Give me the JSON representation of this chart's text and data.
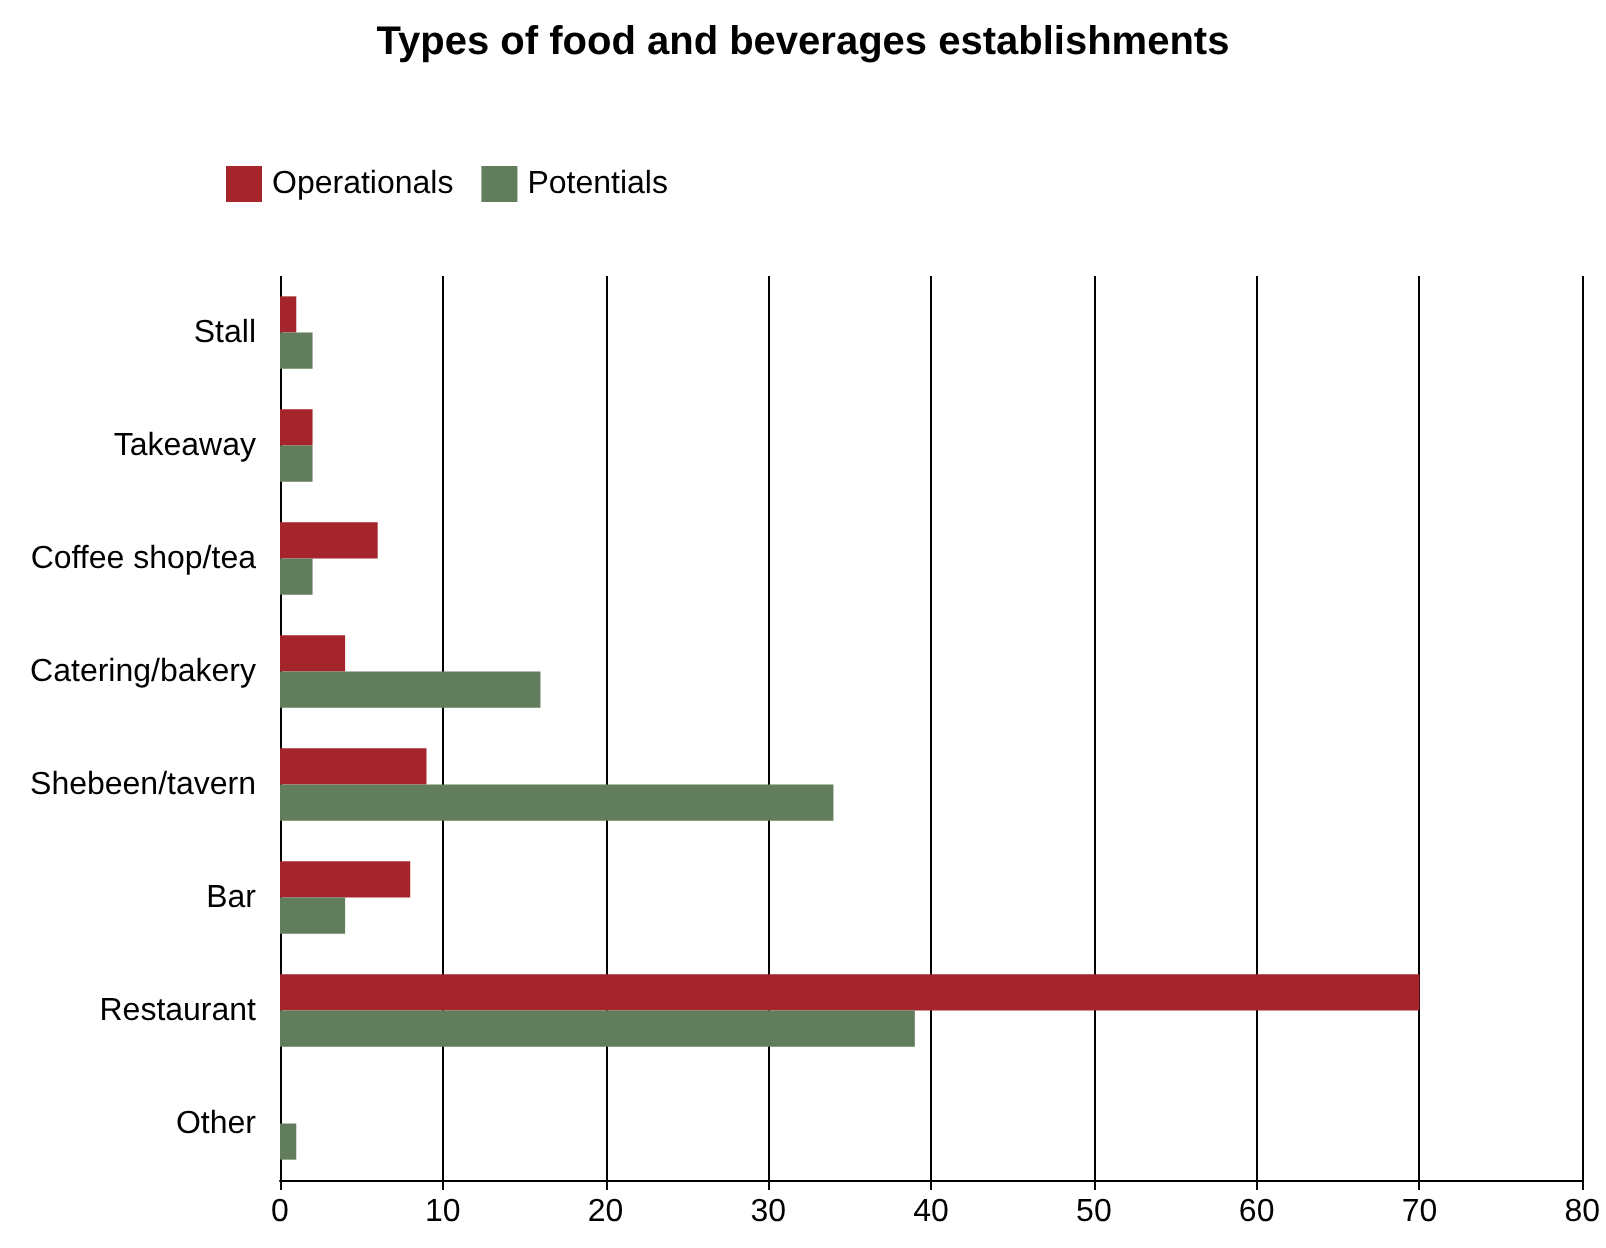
{
  "chart_data": {
    "type": "bar",
    "orientation": "horizontal",
    "title": "Types of food and beverages establishments",
    "categories": [
      "Stall",
      "Takeaway",
      "Coffee shop/tea",
      "Catering/bakery",
      "Shebeen/tavern",
      "Bar",
      "Restaurant",
      "Other"
    ],
    "series": [
      {
        "name": "Operationals",
        "color": "#a4262c",
        "values": [
          1,
          2,
          6,
          4,
          9,
          8,
          70,
          0
        ]
      },
      {
        "name": "Potentials",
        "color": "#627d5c",
        "values": [
          2,
          2,
          2,
          16,
          34,
          4,
          39,
          1
        ]
      }
    ],
    "xlim": [
      0,
      80
    ],
    "xticks": [
      0,
      10,
      20,
      30,
      40,
      50,
      60,
      70,
      80
    ],
    "grid": "x",
    "legend": "top left"
  }
}
